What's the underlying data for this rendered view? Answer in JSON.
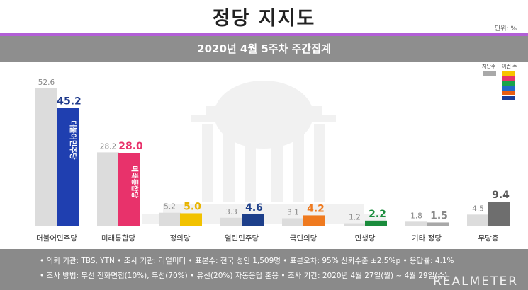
{
  "header": {
    "title": "정당 지지도",
    "unit": "단위: %"
  },
  "subtitle": "2020년 4월 5주차 주간집계",
  "legend": {
    "prev_label": "지난주",
    "cur_label": "이번 주"
  },
  "chart_data": {
    "type": "bar",
    "title": "정당 지지도",
    "subtitle": "2020년 4월 5주차 주간집계",
    "unit": "단위: %",
    "categories": [
      "더불어민주당",
      "미래통합당",
      "정의당",
      "열린민주당",
      "국민의당",
      "민생당",
      "기타 정당",
      "무당층"
    ],
    "series": [
      {
        "name": "지난주",
        "values": [
          52.6,
          28.2,
          5.2,
          3.3,
          3.1,
          1.2,
          1.8,
          4.5
        ]
      },
      {
        "name": "이번 주",
        "values": [
          45.2,
          28.0,
          5.0,
          4.6,
          4.2,
          2.2,
          1.5,
          9.4
        ]
      }
    ],
    "ylim": [
      0,
      55
    ],
    "grid": false,
    "legend_position": "top-right",
    "colors": {
      "prev": "#dcdcdc",
      "current": [
        "#1f3fb0",
        "#e8326b",
        "#f2c200",
        "#1d3f8a",
        "#ef7a1f",
        "#1a8c3c",
        "#a8a8a8",
        "#6e6e6e"
      ],
      "value_label": [
        "#1f3a8c",
        "#e8326b",
        "#e8b400",
        "#1d3f8a",
        "#ef7a1f",
        "#1a8c3c",
        "#888888",
        "#555555"
      ],
      "legend": [
        "#f7c300",
        "#e8326b",
        "#19a34a",
        "#2468c8",
        "#e85d10",
        "#1a3c98"
      ]
    },
    "bar_marks": [
      "더불어민주당",
      "미래통합당",
      "정의당",
      "",
      "",
      "",
      "",
      ""
    ]
  },
  "footer": {
    "line1": "• 의뢰 기관: TBS, YTN • 조사 기관: 리얼미터 • 표본수: 전국 성인 1,509명 • 표본오차: 95% 신뢰수준 ±2.5%p • 응답률: 4.1%",
    "line2": "• 조사 방법: 무선 전화면접(10%), 무선(70%) • 유선(20%) 자동응답 혼용 • 조사 기간: 2020년 4월 27일(월) ~ 4월 29일(수)",
    "brand": "REALMETER"
  }
}
